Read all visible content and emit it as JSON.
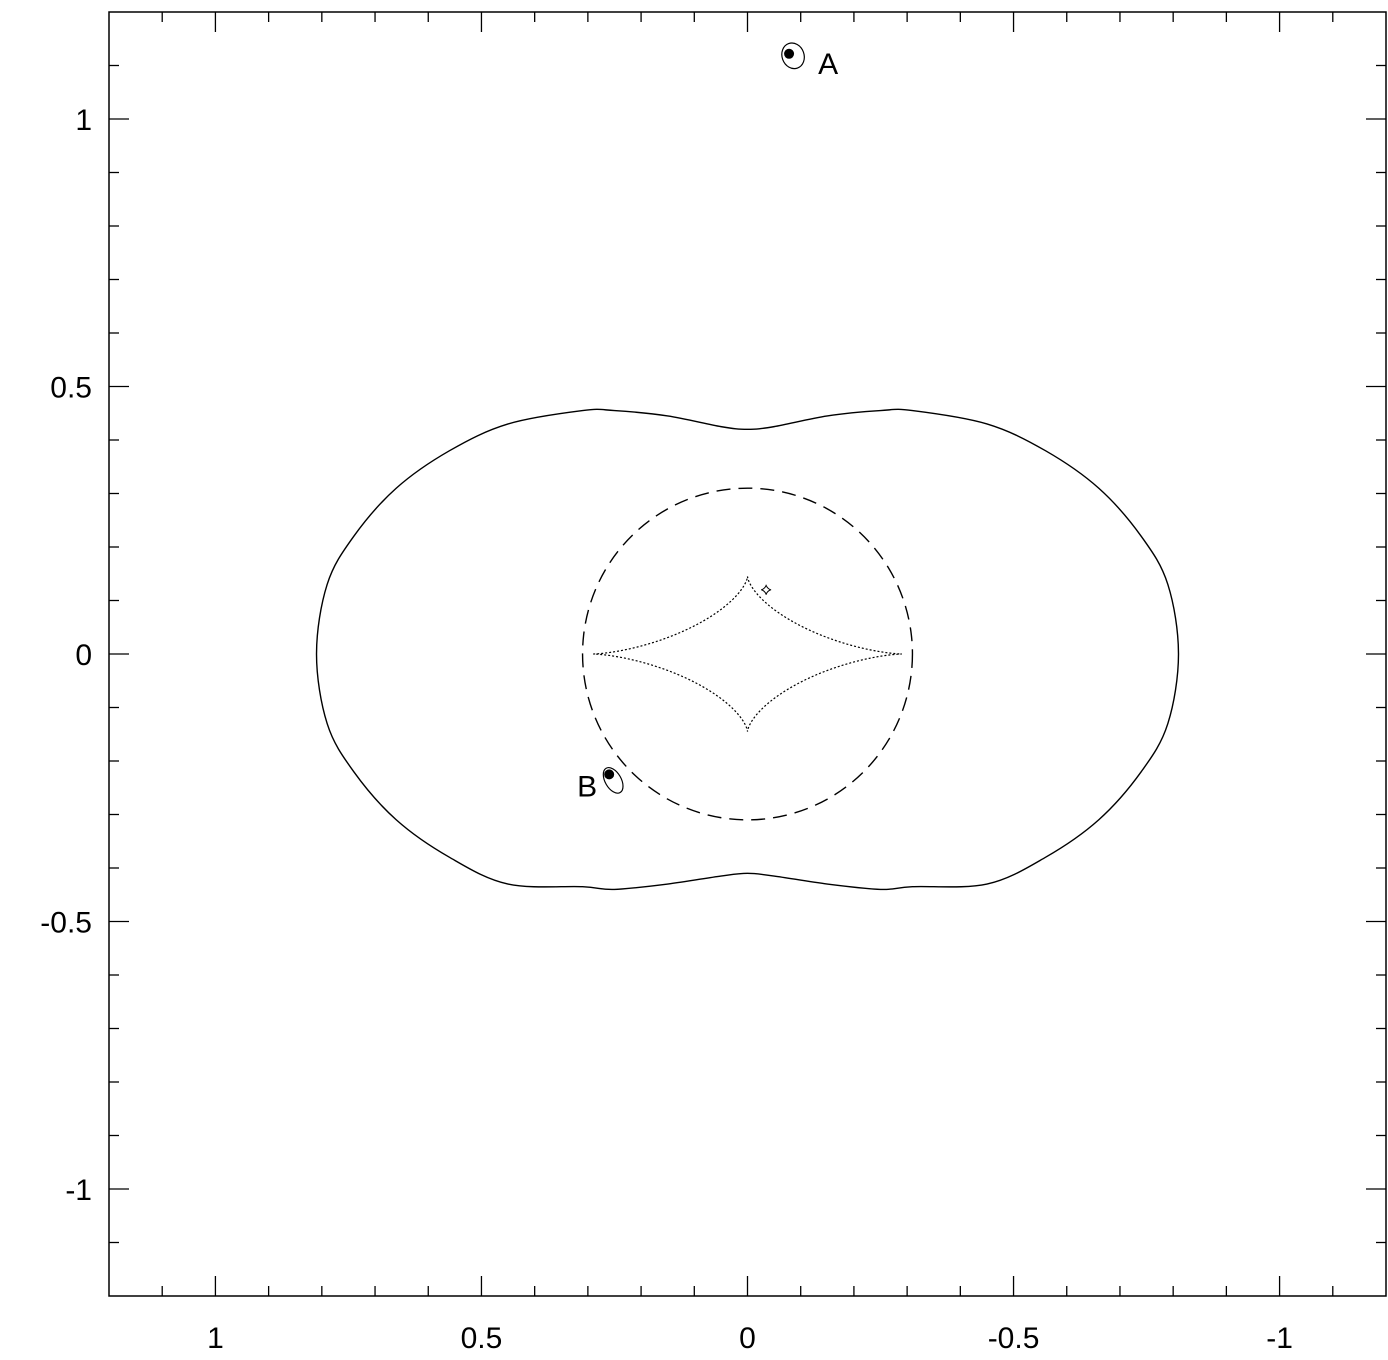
{
  "chart_data": {
    "type": "scatter",
    "title": "",
    "xlabel": "",
    "ylabel": "",
    "xlim": [
      1.2,
      -1.2
    ],
    "ylim": [
      -1.2,
      1.2
    ],
    "x_reversed": true,
    "grid": false,
    "legend": "none",
    "x_ticks": [
      {
        "value": 1,
        "label": "1"
      },
      {
        "value": 0.5,
        "label": "0.5"
      },
      {
        "value": 0,
        "label": "0"
      },
      {
        "value": -0.5,
        "label": "-0.5"
      },
      {
        "value": -1,
        "label": "-1"
      }
    ],
    "y_ticks": [
      {
        "value": 1,
        "label": "1"
      },
      {
        "value": 0.5,
        "label": "0.5"
      },
      {
        "value": 0,
        "label": "0"
      },
      {
        "value": -0.5,
        "label": "-0.5"
      },
      {
        "value": -1,
        "label": "-1"
      }
    ],
    "minor_tick_step": 0.1,
    "images": [
      {
        "label": "A",
        "x": -0.08,
        "y": 1.12
      },
      {
        "label": "B",
        "x": 0.26,
        "y": -0.225
      }
    ],
    "source": {
      "x": -0.035,
      "y": 0.12
    },
    "critical_curve": {
      "style": "solid",
      "points": [
        [
          0.81,
          0.0
        ],
        [
          0.79,
          0.13
        ],
        [
          0.74,
          0.22
        ],
        [
          0.66,
          0.31
        ],
        [
          0.56,
          0.38
        ],
        [
          0.45,
          0.43
        ],
        [
          0.31,
          0.455
        ],
        [
          0.25,
          0.455
        ],
        [
          0.15,
          0.445
        ],
        [
          0.05,
          0.425
        ],
        [
          0.0,
          0.42
        ],
        [
          -0.05,
          0.425
        ],
        [
          -0.15,
          0.445
        ],
        [
          -0.25,
          0.455
        ],
        [
          -0.31,
          0.455
        ],
        [
          -0.45,
          0.43
        ],
        [
          -0.56,
          0.38
        ],
        [
          -0.66,
          0.31
        ],
        [
          -0.74,
          0.22
        ],
        [
          -0.79,
          0.13
        ],
        [
          -0.81,
          0.0
        ],
        [
          -0.79,
          -0.13
        ],
        [
          -0.74,
          -0.22
        ],
        [
          -0.66,
          -0.31
        ],
        [
          -0.56,
          -0.38
        ],
        [
          -0.45,
          -0.43
        ],
        [
          -0.31,
          -0.435
        ],
        [
          -0.25,
          -0.44
        ],
        [
          -0.15,
          -0.43
        ],
        [
          -0.05,
          -0.415
        ],
        [
          0.0,
          -0.41
        ],
        [
          0.05,
          -0.415
        ],
        [
          0.15,
          -0.43
        ],
        [
          0.25,
          -0.44
        ],
        [
          0.31,
          -0.435
        ],
        [
          0.45,
          -0.43
        ],
        [
          0.56,
          -0.38
        ],
        [
          0.66,
          -0.31
        ],
        [
          0.74,
          -0.22
        ],
        [
          0.79,
          -0.13
        ]
      ]
    },
    "radial_curve": {
      "style": "dashed",
      "center": [
        0.0,
        0.0
      ],
      "radius_x": 0.31,
      "radius_y": 0.31
    },
    "caustic": {
      "style": "dotted",
      "half_width": 0.29,
      "half_height": 0.145
    },
    "colors": {
      "line": "#000000",
      "background": "#ffffff"
    }
  }
}
